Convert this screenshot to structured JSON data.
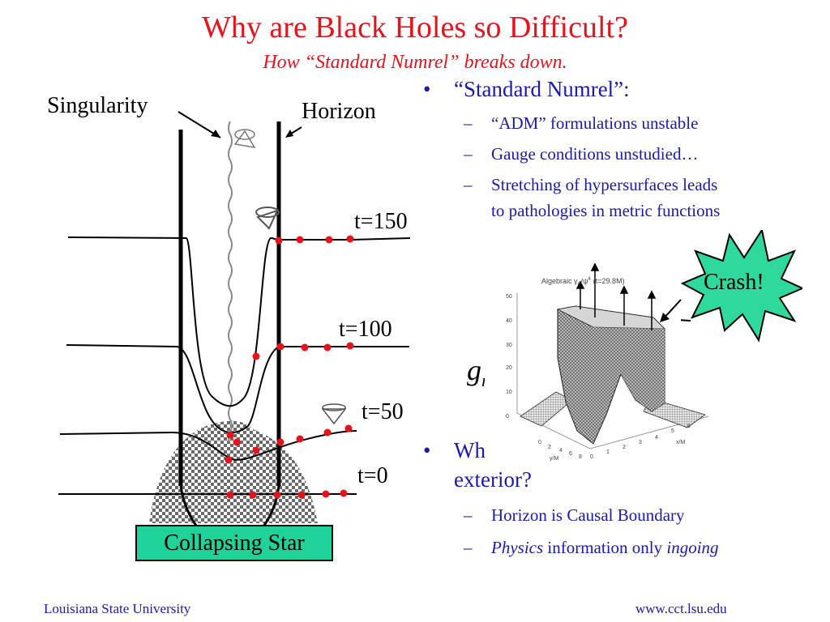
{
  "header": {
    "title": "Why are Black Holes so Difficult?",
    "subtitle": "How “Standard Numrel” breaks down."
  },
  "diagram": {
    "singularity_label": "Singularity",
    "horizon_label": "Horizon",
    "time_labels": [
      "t=150",
      "t=100",
      "t=50",
      "t=0"
    ],
    "star_label": "Collapsing Star",
    "colors": {
      "dots": "#e8121b",
      "star_box": "#1fd29a"
    }
  },
  "bullets": {
    "first": {
      "text": "“Standard Numrel”:",
      "items": [
        "“ADM” formulations unstable",
        "Gauge conditions unstudied…",
        "Stretching of hypersurfaces leads",
        "to pathologies in metric functions"
      ]
    },
    "second": {
      "line1": "Why",
      "line2": "exterior?",
      "items": [
        {
          "text": "Horizon is Causal Boundary"
        },
        {
          "em1": "Physics",
          "text": " information only ",
          "em2": "ingoing"
        }
      ]
    }
  },
  "graph": {
    "title": "Algebraic  γ",
    "title_rest": "rr",
    "title_psi": "/ψ",
    "title_pow": "4",
    "title_time": "(t=29.8M)",
    "z_ticks": [
      "50",
      "40",
      "30",
      "20",
      "10",
      "0"
    ],
    "x_ticks": [
      "0",
      "1",
      "2",
      "3",
      "4",
      "5",
      "6"
    ],
    "y_ticks": [
      "0",
      "2",
      "4",
      "6",
      "8"
    ],
    "axis_x": "x/M",
    "axis_y": "y/M",
    "variable": "g",
    "variable_sub": "rr"
  },
  "callout": {
    "text": "Crash!",
    "color": "#2fd99b"
  },
  "footer": {
    "left": "Louisiana State University",
    "right": "www.cct.lsu.edu"
  },
  "colors": {
    "title": "#e8121b",
    "bullets": "#1a1ab0"
  }
}
